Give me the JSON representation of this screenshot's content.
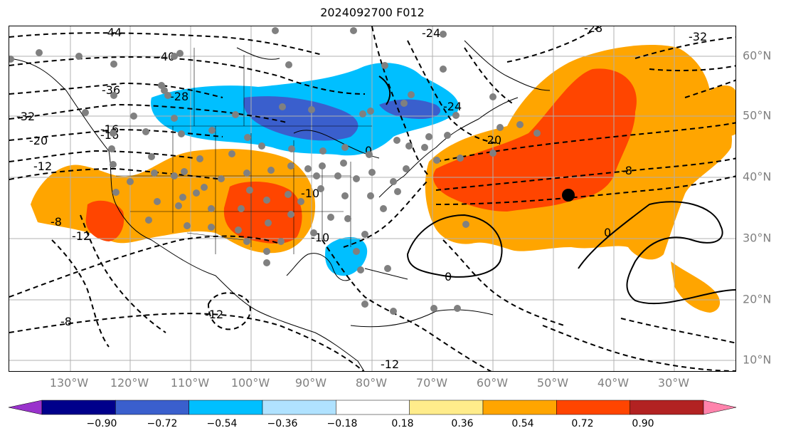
{
  "title": "2024092700 F012",
  "lon_labels": [
    "130°W",
    "120°W",
    "110°W",
    "100°W",
    "90°W",
    "80°W",
    "70°W",
    "60°W",
    "50°W",
    "40°W",
    "30°W"
  ],
  "lat_labels": [
    "60°N",
    "50°N",
    "40°N",
    "30°N",
    "20°N",
    "10°N"
  ],
  "contour_labels": [
    "-44",
    "-40",
    "-36",
    "-32",
    "-28",
    "-24",
    "-20",
    "-16",
    "-12",
    "-8",
    "-8",
    "-10",
    "-10",
    "-12",
    "-12",
    "-12",
    "0",
    "0",
    "0",
    "-8",
    "-32",
    "-28",
    "-24",
    "-20",
    "-16"
  ],
  "colorbar": {
    "ticks": [
      "−0.90",
      "−0.72",
      "−0.54",
      "−0.36",
      "−0.18",
      "0.18",
      "0.36",
      "0.54",
      "0.72",
      "0.90"
    ],
    "colors": [
      "#9932cc",
      "#00008b",
      "#3a5fcd",
      "#00bfff",
      "#b0e2ff",
      "#ffffff",
      "#ffec8b",
      "#ffa500",
      "#ff4500",
      "#b22222",
      "#ff83ac"
    ]
  },
  "colors": {
    "orange": "#ffa500",
    "red_orange": "#ff4500",
    "dark_blue": "#3a5fcd",
    "light_blue": "#00bfff",
    "station_dot": "#808080",
    "marker": "#000000"
  }
}
